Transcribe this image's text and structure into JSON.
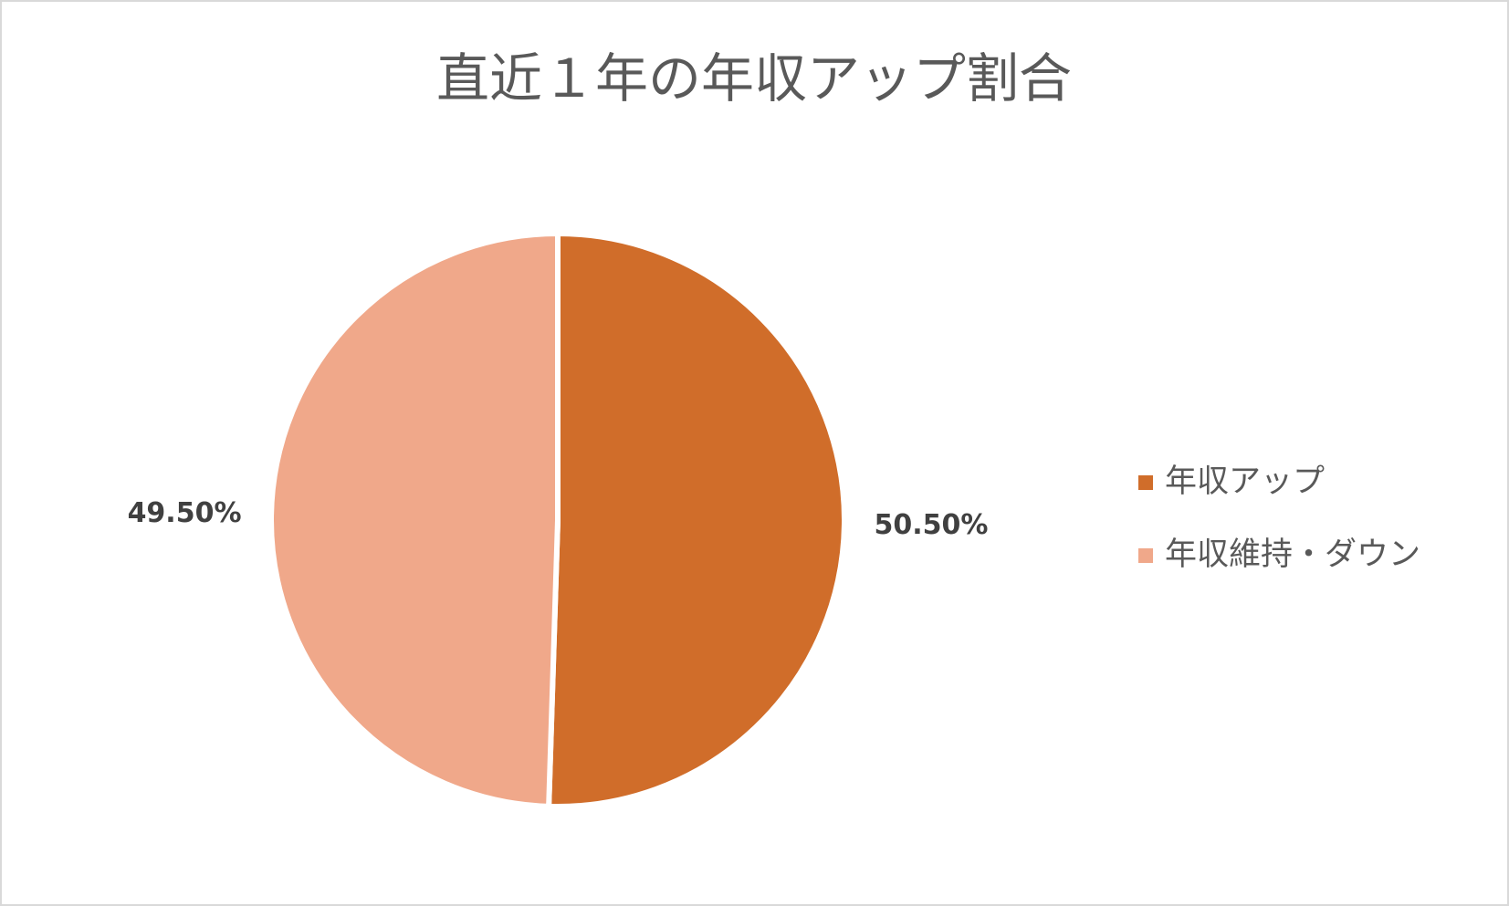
{
  "chart_data": {
    "type": "pie",
    "title": "直近１年の年収アップ割合",
    "categories": [
      "年収アップ",
      "年収維持・ダウン"
    ],
    "values": [
      50.5,
      49.5
    ],
    "value_labels": [
      "50.50%",
      "49.50%"
    ],
    "colors": [
      "#D06D2A",
      "#F0A88A"
    ],
    "legend": "right"
  }
}
